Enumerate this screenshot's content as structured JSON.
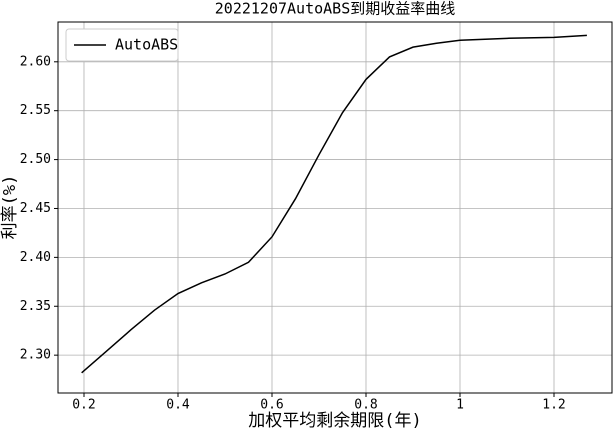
{
  "chart_data": {
    "type": "line",
    "title": "20221207AutoABS到期收益率曲线",
    "x_label": "加权平均剩余期限(年)",
    "y_label": "利率(%)",
    "x": [
      0.195,
      0.25,
      0.3,
      0.35,
      0.4,
      0.45,
      0.5,
      0.55,
      0.6,
      0.65,
      0.7,
      0.75,
      0.8,
      0.85,
      0.9,
      0.95,
      1.0,
      1.1,
      1.2,
      1.27
    ],
    "series": [
      {
        "name": "AutoABS",
        "color": "#000000",
        "values": [
          2.282,
          2.305,
          2.326,
          2.346,
          2.363,
          2.374,
          2.383,
          2.395,
          2.421,
          2.46,
          2.505,
          2.548,
          2.582,
          2.605,
          2.615,
          2.619,
          2.622,
          2.624,
          2.625,
          2.627
        ]
      }
    ],
    "xlim": [
      0.1447,
      1.3234
    ],
    "ylim": [
      2.2613,
      2.6407
    ],
    "xticks": [
      0.2,
      0.4,
      0.6,
      0.8,
      1.0,
      1.2
    ],
    "yticks": [
      {
        "value": 2.3,
        "label": "2.30"
      },
      {
        "value": 2.35,
        "label": "2.35"
      },
      {
        "value": 2.4,
        "label": "2.40"
      },
      {
        "value": 2.45,
        "label": "2.45"
      },
      {
        "value": 2.5,
        "label": "2.50"
      },
      {
        "value": 2.55,
        "label": "2.55"
      },
      {
        "value": 2.6,
        "label": "2.60"
      }
    ],
    "grid": true,
    "legend": "upper-left"
  }
}
